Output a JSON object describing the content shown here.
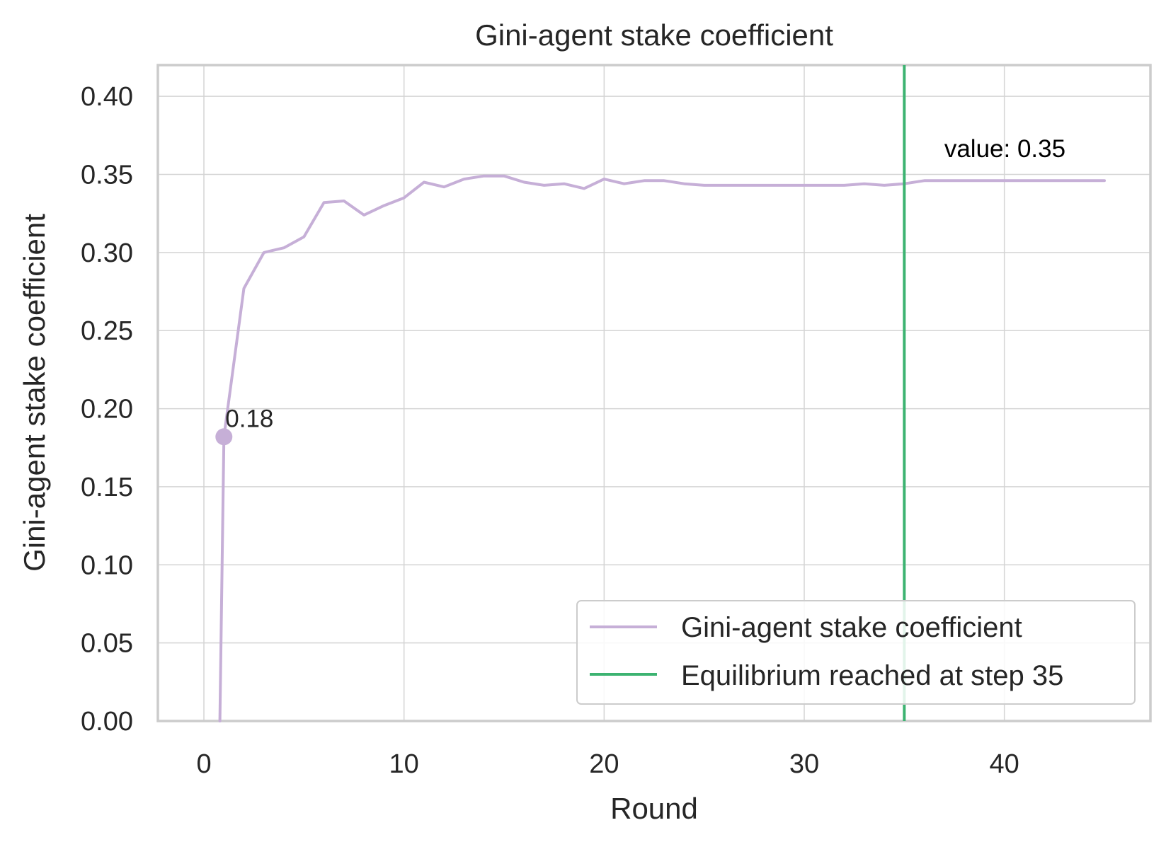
{
  "chart_data": {
    "type": "line",
    "title": "Gini-agent stake coefficient",
    "xlabel": "Round",
    "ylabel": "Gini-agent stake coefficient",
    "xlim": [
      -2.3,
      47.3
    ],
    "ylim": [
      0,
      0.42
    ],
    "xticks": [
      0,
      10,
      20,
      30,
      40
    ],
    "xtick_labels": [
      "0",
      "10",
      "20",
      "30",
      "40"
    ],
    "yticks": [
      0,
      0.05,
      0.1,
      0.15,
      0.2,
      0.25,
      0.3,
      0.35,
      0.4
    ],
    "ytick_labels": [
      "0.00",
      "0.05",
      "0.10",
      "0.15",
      "0.20",
      "0.25",
      "0.30",
      "0.35",
      "0.40"
    ],
    "grid": true,
    "legend_position": "lower-right",
    "series": [
      {
        "name": "Gini-agent stake coefficient",
        "color": "#c6afd7",
        "x": [
          0.8,
          1,
          2,
          3,
          4,
          5,
          6,
          7,
          8,
          9,
          10,
          11,
          12,
          13,
          14,
          15,
          16,
          17,
          18,
          19,
          20,
          21,
          22,
          23,
          24,
          25,
          26,
          27,
          28,
          29,
          30,
          31,
          32,
          33,
          34,
          35,
          36,
          37,
          38,
          39,
          40,
          41,
          42,
          43,
          44,
          45
        ],
        "y": [
          0.0,
          0.182,
          0.277,
          0.3,
          0.303,
          0.31,
          0.332,
          0.333,
          0.324,
          0.33,
          0.335,
          0.345,
          0.342,
          0.347,
          0.349,
          0.349,
          0.345,
          0.343,
          0.344,
          0.341,
          0.347,
          0.344,
          0.346,
          0.346,
          0.344,
          0.343,
          0.343,
          0.343,
          0.343,
          0.343,
          0.343,
          0.343,
          0.343,
          0.344,
          0.343,
          0.344,
          0.346,
          0.346,
          0.346,
          0.346,
          0.346,
          0.346,
          0.346,
          0.346,
          0.346,
          0.346
        ]
      },
      {
        "name": "Equilibrium reached at step 35",
        "type": "vline",
        "color": "#3cb371",
        "x": 35
      }
    ],
    "annotations": [
      {
        "text": "0.18",
        "x": 1,
        "y": 0.182,
        "marker": true,
        "color": "#262626"
      },
      {
        "text": "value: 0.35",
        "x": 37,
        "y": 0.361,
        "color": "#000000"
      }
    ]
  }
}
